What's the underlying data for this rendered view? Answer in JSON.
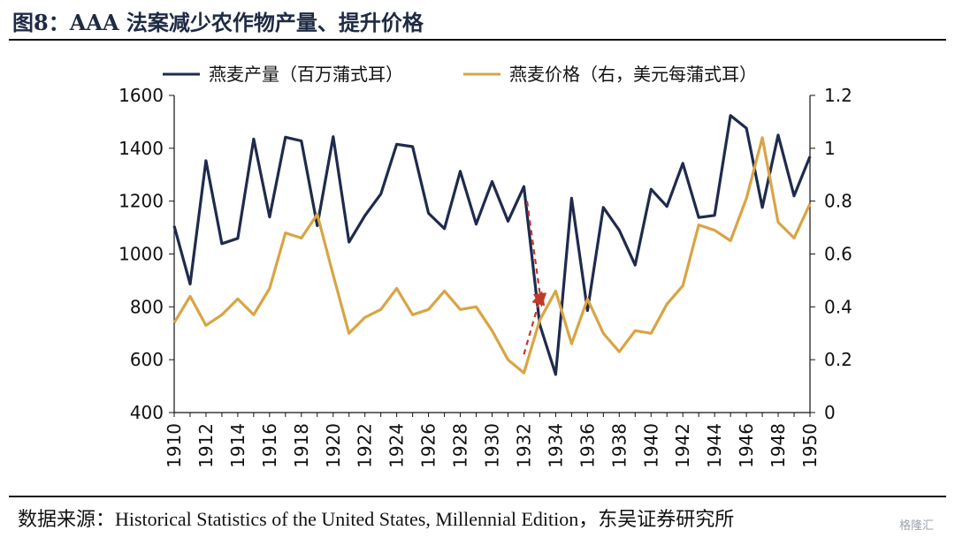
{
  "figure": {
    "title": "图8：AAA 法案减少农作物产量、提升价格",
    "source": "数据来源：Historical Statistics of the United States, Millennial Edition，东吴证券研究所",
    "watermark": "格隆汇"
  },
  "colors": {
    "production": "#1f2a4d",
    "price": "#d9a444",
    "arrow": "#c0392b"
  },
  "chart_data": {
    "type": "line",
    "title": "",
    "xlabel": "",
    "ylabel": "",
    "x": [
      1910,
      1911,
      1912,
      1913,
      1914,
      1915,
      1916,
      1917,
      1918,
      1919,
      1920,
      1921,
      1922,
      1923,
      1924,
      1925,
      1926,
      1927,
      1928,
      1929,
      1930,
      1931,
      1932,
      1933,
      1934,
      1935,
      1936,
      1937,
      1938,
      1939,
      1940,
      1941,
      1942,
      1943,
      1944,
      1945,
      1946,
      1947,
      1948,
      1949,
      1950
    ],
    "x_ticks": [
      "1910",
      "1912",
      "1914",
      "1916",
      "1918",
      "1920",
      "1922",
      "1924",
      "1926",
      "1928",
      "1930",
      "1932",
      "1934",
      "1936",
      "1938",
      "1940",
      "1942",
      "1944",
      "1946",
      "1948",
      "1950"
    ],
    "y_left": {
      "range": [
        400,
        1600
      ],
      "ticks": [
        "400",
        "600",
        "800",
        "1000",
        "1200",
        "1400",
        "1600"
      ]
    },
    "y_right": {
      "range": [
        0,
        1.2
      ],
      "ticks": [
        "0",
        "0.2",
        "0.4",
        "0.6",
        "0.8",
        "1",
        "1.2"
      ]
    },
    "series": [
      {
        "name": "燕麦产量（百万蒲式耳）",
        "axis": "left",
        "values": [
          1106,
          886,
          1353,
          1039,
          1059,
          1435,
          1140,
          1442,
          1428,
          1107,
          1444,
          1045,
          1145,
          1227,
          1415,
          1406,
          1154,
          1096,
          1313,
          1113,
          1274,
          1124,
          1255,
          733,
          544,
          1211,
          786,
          1176,
          1090,
          958,
          1245,
          1180,
          1343,
          1138,
          1146,
          1524,
          1476,
          1176,
          1450,
          1220,
          1369
        ]
      },
      {
        "name": "燕麦价格（右，美元每蒲式耳）",
        "axis": "right",
        "values": [
          0.34,
          0.44,
          0.33,
          0.37,
          0.43,
          0.37,
          0.47,
          0.68,
          0.66,
          0.75,
          0.52,
          0.3,
          0.36,
          0.39,
          0.47,
          0.37,
          0.39,
          0.46,
          0.39,
          0.4,
          0.31,
          0.2,
          0.15,
          0.35,
          0.46,
          0.26,
          0.43,
          0.3,
          0.23,
          0.31,
          0.3,
          0.41,
          0.48,
          0.71,
          0.69,
          0.65,
          0.81,
          1.04,
          0.72,
          0.66,
          0.79
        ]
      }
    ],
    "annotations": [
      {
        "type": "arrow",
        "description": "production drop",
        "from": [
          1932.2,
          1200
        ],
        "to": [
          1933.1,
          810
        ]
      },
      {
        "type": "arrow",
        "description": "price rise",
        "from": [
          1932.0,
          0.22
        ],
        "to": [
          1933.1,
          0.45
        ]
      }
    ],
    "legend": "top",
    "grid": false
  }
}
